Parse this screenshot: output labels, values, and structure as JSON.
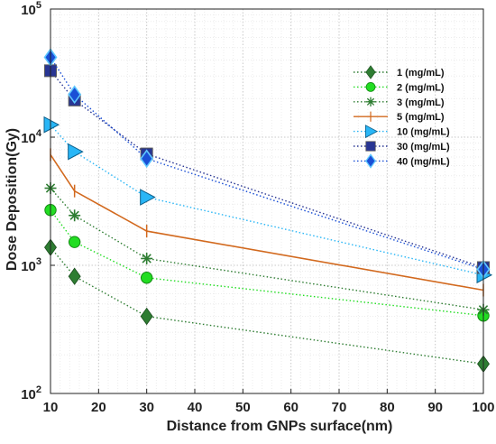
{
  "chart_data": {
    "type": "line",
    "xlabel": "Distance from GNPs surface(nm)",
    "ylabel": "Dose Deposition(Gy)",
    "xlim": [
      10,
      100
    ],
    "ylim": [
      100,
      100000
    ],
    "yscale": "log",
    "grid": "on (major and minor, dotted)",
    "legend_position": "top-right",
    "x_ticks": [
      "10",
      "20",
      "30",
      "40",
      "50",
      "60",
      "70",
      "80",
      "90",
      "100"
    ],
    "y_ticks": [
      {
        "base": "10",
        "exp": "2",
        "value": 100
      },
      {
        "base": "10",
        "exp": "3",
        "value": 1000
      },
      {
        "base": "10",
        "exp": "4",
        "value": 10000
      },
      {
        "base": "10",
        "exp": "5",
        "value": 100000
      }
    ],
    "x": [
      10,
      15,
      30,
      100
    ],
    "series": [
      {
        "name": "1 (mg/mL)",
        "values": [
          1380,
          820,
          400,
          170
        ],
        "color": "#2e7d32",
        "marker": "diamond",
        "line": "dotted"
      },
      {
        "name": "2 (mg/mL)",
        "values": [
          2700,
          1520,
          800,
          405
        ],
        "color": "#22dd22",
        "marker": "circle",
        "line": "dotted"
      },
      {
        "name": "3 (mg/mL)",
        "values": [
          4000,
          2450,
          1130,
          450
        ],
        "color": "#2e7d32",
        "marker": "asterisk",
        "line": "dotted"
      },
      {
        "name": "5 (mg/mL)",
        "values": [
          7300,
          3800,
          1850,
          640
        ],
        "color": "#d2691e",
        "marker": "vline",
        "line": "solid"
      },
      {
        "name": "10 (mg/mL)",
        "values": [
          12500,
          7700,
          3400,
          840
        ],
        "color": "#29b6f6",
        "marker": "triangle-right",
        "line": "dotted"
      },
      {
        "name": "30 (mg/mL)",
        "values": [
          33000,
          19500,
          7400,
          960
        ],
        "color": "#283593",
        "marker": "square",
        "line": "dotted"
      },
      {
        "name": "40 (mg/mL)",
        "values": [
          42000,
          21500,
          6800,
          930
        ],
        "color": "#1a4fd6",
        "marker": "diamond",
        "line": "dotted"
      }
    ]
  }
}
